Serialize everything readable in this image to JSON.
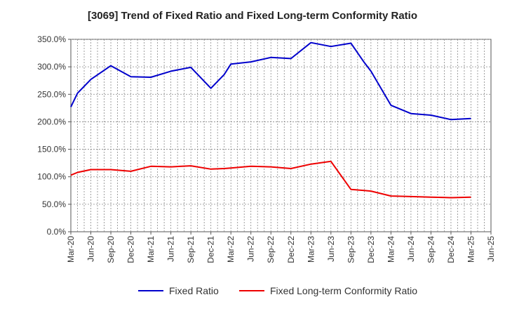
{
  "chart_data": {
    "type": "line",
    "title": "[3069]  Trend of Fixed Ratio and Fixed Long-term Conformity Ratio",
    "xlabel": "",
    "ylabel": "",
    "ylim": [
      0,
      350
    ],
    "grid": true,
    "legend_position": "bottom",
    "y_ticks": [
      "0.0%",
      "50.0%",
      "100.0%",
      "150.0%",
      "200.0%",
      "250.0%",
      "300.0%",
      "350.0%"
    ],
    "x_ticks": [
      "Mar-20",
      "Jun-20",
      "Sep-20",
      "Dec-20",
      "Mar-21",
      "Jun-21",
      "Sep-21",
      "Dec-21",
      "Mar-22",
      "Jun-22",
      "Sep-22",
      "Dec-22",
      "Mar-23",
      "Jun-23",
      "Sep-23",
      "Dec-23",
      "Mar-24",
      "Jun-24",
      "Sep-24",
      "Dec-24",
      "Mar-25",
      "Jun-25"
    ],
    "x": [
      "Mar-20",
      "Apr-20",
      "Jun-20",
      "Sep-20",
      "Dec-20",
      "Mar-21",
      "Jun-21",
      "Sep-21",
      "Dec-21",
      "Feb-22",
      "Mar-22",
      "Jun-22",
      "Sep-22",
      "Dec-22",
      "Mar-23",
      "Jun-23",
      "Sep-23",
      "Nov-23",
      "Dec-23",
      "Mar-24",
      "Jun-24",
      "Sep-24",
      "Dec-24",
      "Mar-25"
    ],
    "series": [
      {
        "name": "Fixed Ratio",
        "color": "#0000cc",
        "values": [
          227,
          252,
          277,
          302,
          282,
          281,
          292,
          299,
          261,
          286,
          305,
          309,
          317,
          315,
          344,
          337,
          343,
          308,
          292,
          230,
          215,
          212,
          204,
          206
        ]
      },
      {
        "name": "Fixed Long-term Conformity Ratio",
        "color": "#ee0000",
        "values": [
          103,
          108,
          113,
          113,
          110,
          119,
          118,
          120,
          114,
          115,
          116,
          119,
          118,
          115,
          123,
          128,
          77,
          75,
          74,
          65,
          64,
          63,
          62,
          63
        ]
      }
    ]
  }
}
